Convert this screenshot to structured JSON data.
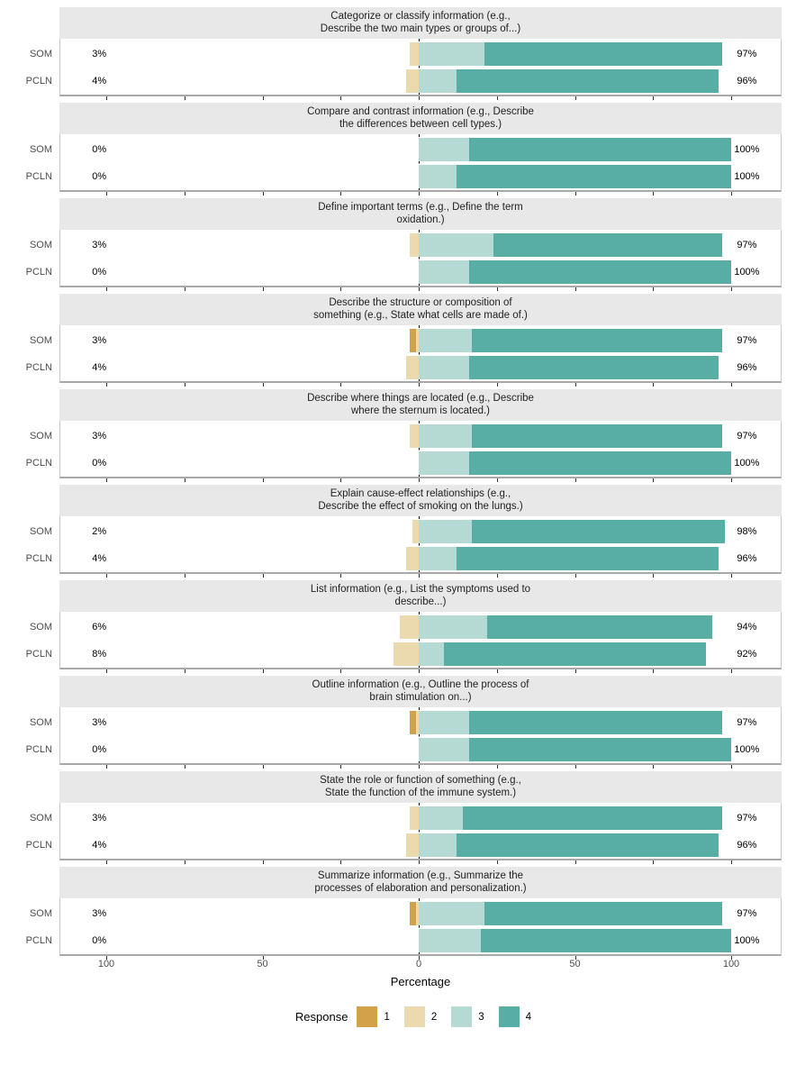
{
  "figure": {
    "background": "#FFFFFF",
    "strip_background": "#E8E8E8",
    "zero_line_color": "#000000",
    "panel_border_color": "#C9C9C9",
    "axis_line_color": "#A9A9A9"
  },
  "axis": {
    "label": "Percentage",
    "major_tick_labels": [
      "100",
      "50",
      "0",
      "50",
      "100"
    ],
    "major_tick_values": [
      -100,
      -50,
      0,
      50,
      100
    ],
    "minor_tick_step": 25
  },
  "legend": {
    "title": "Response",
    "items": [
      {
        "label": "1",
        "color": "#D2A24B"
      },
      {
        "label": "2",
        "color": "#EADAAE"
      },
      {
        "label": "3",
        "color": "#B5DAD3"
      },
      {
        "label": "4",
        "color": "#58AEA4"
      }
    ]
  },
  "chart_data": {
    "type": "bar",
    "variant": "diverging-stacked-horizontal-likert",
    "xlabel": "Percentage",
    "x_range": [
      -115,
      115
    ],
    "response_categories": [
      "1",
      "2",
      "3",
      "4"
    ],
    "response_colors": [
      "#D2A24B",
      "#EADAAE",
      "#B5DAD3",
      "#58AEA4"
    ],
    "note": "values = percent for responses [1,2,3,4]; 1+2 plotted left of zero, 3+4 right of zero",
    "panels": [
      {
        "title_line1": "Categorize or classify information (e.g.,",
        "title_line2": "Describe the two main types or groups of...)",
        "rows": [
          {
            "group": "SOM",
            "left_label": "3%",
            "right_label": "97%",
            "values": [
              0,
              3,
              21,
              76
            ]
          },
          {
            "group": "PCLN",
            "left_label": "4%",
            "right_label": "96%",
            "values": [
              0,
              4,
              12,
              84
            ]
          }
        ]
      },
      {
        "title_line1": "Compare and contrast information (e.g., Describe",
        "title_line2": "the differences between cell types.)",
        "rows": [
          {
            "group": "SOM",
            "left_label": "0%",
            "right_label": "100%",
            "values": [
              0,
              0,
              16,
              84
            ]
          },
          {
            "group": "PCLN",
            "left_label": "0%",
            "right_label": "100%",
            "values": [
              0,
              0,
              12,
              88
            ]
          }
        ]
      },
      {
        "title_line1": "Define important terms (e.g., Define the term",
        "title_line2": "oxidation.)",
        "rows": [
          {
            "group": "SOM",
            "left_label": "3%",
            "right_label": "97%",
            "values": [
              0,
              3,
              24,
              73
            ]
          },
          {
            "group": "PCLN",
            "left_label": "0%",
            "right_label": "100%",
            "values": [
              0,
              0,
              16,
              84
            ]
          }
        ]
      },
      {
        "title_line1": "Describe the structure or composition of",
        "title_line2": "something (e.g., State what cells are made of.)",
        "rows": [
          {
            "group": "SOM",
            "left_label": "3%",
            "right_label": "97%",
            "values": [
              2,
              1,
              17,
              80
            ]
          },
          {
            "group": "PCLN",
            "left_label": "4%",
            "right_label": "96%",
            "values": [
              0,
              4,
              16,
              80
            ]
          }
        ]
      },
      {
        "title_line1": "Describe where things are located (e.g., Describe",
        "title_line2": "where the sternum is located.)",
        "rows": [
          {
            "group": "SOM",
            "left_label": "3%",
            "right_label": "97%",
            "values": [
              0,
              3,
              17,
              80
            ]
          },
          {
            "group": "PCLN",
            "left_label": "0%",
            "right_label": "100%",
            "values": [
              0,
              0,
              16,
              84
            ]
          }
        ]
      },
      {
        "title_line1": "Explain cause-effect relationships (e.g.,",
        "title_line2": "Describe the effect of smoking on the lungs.)",
        "rows": [
          {
            "group": "SOM",
            "left_label": "2%",
            "right_label": "98%",
            "values": [
              0,
              2,
              17,
              81
            ]
          },
          {
            "group": "PCLN",
            "left_label": "4%",
            "right_label": "96%",
            "values": [
              0,
              4,
              12,
              84
            ]
          }
        ]
      },
      {
        "title_line1": "List information (e.g., List the symptoms used to",
        "title_line2": "describe...)",
        "rows": [
          {
            "group": "SOM",
            "left_label": "6%",
            "right_label": "94%",
            "values": [
              0,
              6,
              22,
              72
            ]
          },
          {
            "group": "PCLN",
            "left_label": "8%",
            "right_label": "92%",
            "values": [
              0,
              8,
              8,
              84
            ]
          }
        ]
      },
      {
        "title_line1": "Outline information (e.g., Outline the process of",
        "title_line2": "brain stimulation on...)",
        "rows": [
          {
            "group": "SOM",
            "left_label": "3%",
            "right_label": "97%",
            "values": [
              2,
              1,
              16,
              81
            ]
          },
          {
            "group": "PCLN",
            "left_label": "0%",
            "right_label": "100%",
            "values": [
              0,
              0,
              16,
              84
            ]
          }
        ]
      },
      {
        "title_line1": "State the role or function of something (e.g.,",
        "title_line2": "State the function of the immune system.)",
        "rows": [
          {
            "group": "SOM",
            "left_label": "3%",
            "right_label": "97%",
            "values": [
              0,
              3,
              14,
              83
            ]
          },
          {
            "group": "PCLN",
            "left_label": "4%",
            "right_label": "96%",
            "values": [
              0,
              4,
              12,
              84
            ]
          }
        ]
      },
      {
        "title_line1": "Summarize information (e.g., Summarize the",
        "title_line2": "processes of elaboration and personalization.)",
        "rows": [
          {
            "group": "SOM",
            "left_label": "3%",
            "right_label": "97%",
            "values": [
              2,
              1,
              21,
              76
            ]
          },
          {
            "group": "PCLN",
            "left_label": "0%",
            "right_label": "100%",
            "values": [
              0,
              0,
              20,
              80
            ]
          }
        ]
      }
    ]
  }
}
